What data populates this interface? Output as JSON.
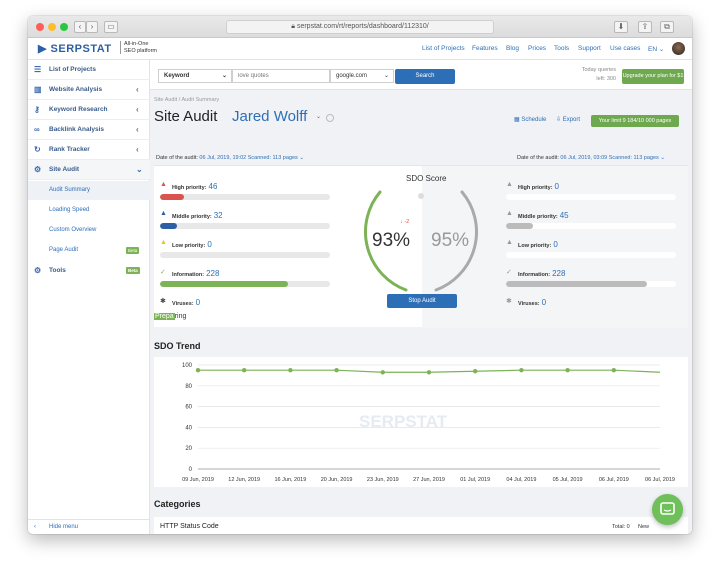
{
  "browser": {
    "url": "serpstat.com/rt/reports/dashboard/112310/",
    "back_label": "‹",
    "forward_label": "›"
  },
  "header": {
    "logo_text": "SERPSTAT",
    "tagline_line1": "All-in-One",
    "tagline_line2": "SEO platform",
    "links": [
      "List of Projects",
      "Features",
      "Blog",
      "Prices",
      "Tools",
      "Support",
      "Use cases"
    ],
    "language": "EN ⌄"
  },
  "sidebar": {
    "top_item": "List of Projects",
    "items": [
      {
        "label": "Website Analysis",
        "icon": "chart-icon"
      },
      {
        "label": "Keyword Research",
        "icon": "key-icon"
      },
      {
        "label": "Backlink Analysis",
        "icon": "link-icon"
      },
      {
        "label": "Rank Tracker",
        "icon": "tracker-icon"
      },
      {
        "label": "Site Audit",
        "icon": "audit-icon"
      }
    ],
    "subitems": [
      "Audit Summary",
      "Loading Speed",
      "Custom Overview",
      "Page Audit"
    ],
    "page_audit_badge": "Beta",
    "tools_label": "Tools",
    "tools_badge": "Beta",
    "hide_menu": "Hide menu"
  },
  "search": {
    "mode": "Keyword",
    "query_placeholder": "love quotes",
    "database": "google.com",
    "button": "Search",
    "today_queries_label": "Today queries",
    "today_queries_left": "left: 300",
    "upgrade_button": "Upgrade your plan for $1"
  },
  "page": {
    "breadcrumb": "Site Audit / Audit Summary",
    "title": "Site Audit",
    "project": "Jared Wolff",
    "schedule": "Schedule",
    "export": "Export",
    "limit": "Your limit 9 184/10 000 pages"
  },
  "audit_left": {
    "date_label": "Date of the audit:",
    "date_value": "06 Jul, 2019, 19:02 Scanned: 113 pages",
    "high_label": "High priority:",
    "high_value": "46",
    "high_fill": 0.14,
    "middle_label": "Middle priority:",
    "middle_value": "32",
    "middle_fill": 0.1,
    "low_label": "Low priority:",
    "low_value": "0",
    "low_fill": 0,
    "info_label": "Information:",
    "info_value": "228",
    "info_fill": 0.75,
    "viruses_label": "Viruses:",
    "viruses_value": "0"
  },
  "audit_right": {
    "date_label": "Date of the audit:",
    "date_value": "06 Jul, 2019, 03:09 Scanned: 113 pages",
    "high_label": "High priority:",
    "high_value": "0",
    "high_fill": 0,
    "middle_label": "Middle priority:",
    "middle_value": "45",
    "middle_fill": 0.16,
    "low_label": "Low priority:",
    "low_value": "0",
    "low_fill": 0,
    "info_label": "Information:",
    "info_value": "228",
    "info_fill": 0.83,
    "viruses_label": "Viruses:",
    "viruses_value": "0"
  },
  "sdo": {
    "title": "SDO Score",
    "current": "93%",
    "previous": "95%",
    "delta": "↓ -2",
    "stop_button": "Stop Audit",
    "status_prefix": "Prepa",
    "status_suffix": "ring"
  },
  "trend": {
    "heading": "SDO Trend",
    "watermark": "SERPSTAT"
  },
  "chart_data": {
    "type": "line",
    "x": [
      "09 Jun, 2019",
      "12 Jun, 2019",
      "16 Jun, 2019",
      "20 Jun, 2019",
      "23 Jun, 2019",
      "27 Jun, 2019",
      "01 Jul, 2019",
      "04 Jul, 2019",
      "05 Jul, 2019",
      "06 Jul, 2019",
      "06 Jul, 2019"
    ],
    "series": [
      {
        "values": [
          95,
          95,
          95,
          95,
          93,
          93,
          94,
          95,
          95,
          95,
          93
        ]
      }
    ],
    "ylim": [
      0,
      100
    ],
    "yticks": [
      0,
      20,
      40,
      60,
      80,
      100
    ],
    "color": "#7cb356",
    "grid": true
  },
  "categories": {
    "heading": "Categories",
    "http_label": "HTTP Status Code",
    "total_label": "Total: 0",
    "new_label": "New"
  },
  "colors": {
    "brand": "#2d6fb7",
    "green": "#7cb356",
    "red": "#d9534f"
  }
}
